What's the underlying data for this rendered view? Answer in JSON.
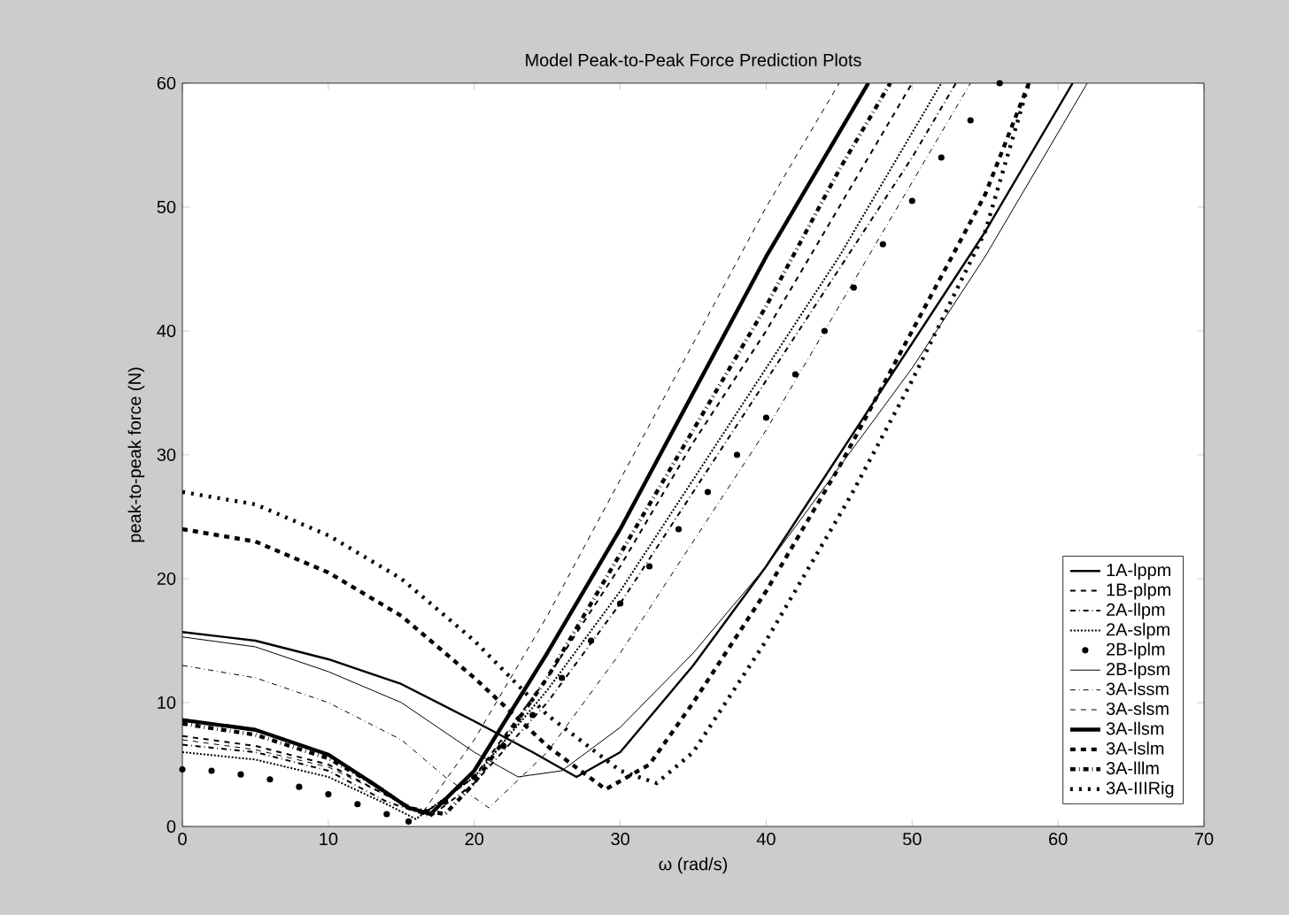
{
  "chart_data": {
    "type": "line",
    "title": "Model Peak-to-Peak Force Prediction Plots",
    "xlabel": "ω (rad/s)",
    "ylabel": "peak-to-peak force (N)",
    "xlim": [
      0,
      70
    ],
    "ylim": [
      0,
      60
    ],
    "xticks": [
      0,
      10,
      20,
      30,
      40,
      50,
      60,
      70
    ],
    "yticks": [
      0,
      10,
      20,
      30,
      40,
      50,
      60
    ],
    "grid": false,
    "legend": "bottom right",
    "series": [
      {
        "name": "1A-lppm",
        "color": "#000000",
        "line_style": "solid",
        "x": [
          0,
          5,
          10,
          15,
          20,
          24,
          27,
          30,
          35,
          40,
          45,
          50,
          55,
          61
        ],
        "values": [
          15.7,
          15,
          13.5,
          11.5,
          8.5,
          6,
          4,
          6,
          13,
          21,
          30,
          39,
          48,
          60
        ]
      },
      {
        "name": "1B-plpm",
        "color": "#000000",
        "line_style": "dashed",
        "x": [
          0,
          5,
          10,
          14,
          16.5,
          20,
          25,
          30,
          35,
          40,
          45,
          50
        ],
        "values": [
          7.3,
          6.5,
          5,
          2.5,
          1,
          4,
          12,
          21,
          31,
          40,
          50,
          60
        ]
      },
      {
        "name": "2A-llpm",
        "color": "#000000",
        "line_style": "dashdot",
        "x": [
          0,
          5,
          10,
          14,
          17,
          20,
          25,
          30,
          35,
          40,
          45,
          50,
          53
        ],
        "values": [
          6.6,
          6,
          4.5,
          2,
          0.8,
          3.5,
          10,
          18,
          27,
          36,
          45,
          54,
          60
        ]
      },
      {
        "name": "2A-slpm",
        "color": "#000000",
        "line_style": "dotted",
        "x": [
          0,
          5,
          10,
          14,
          16,
          20,
          25,
          30,
          35,
          40,
          45,
          50,
          52
        ],
        "values": [
          6.0,
          5.4,
          4,
          1.8,
          0.6,
          4,
          11,
          19,
          28,
          37,
          46,
          56,
          60
        ]
      },
      {
        "name": "2B-lplm",
        "type": "scatter",
        "color": "#000000",
        "marker": "circle",
        "x": [
          0,
          2,
          4,
          6,
          8,
          10,
          12,
          14,
          15.5,
          18,
          20,
          22,
          24,
          26,
          28,
          30,
          32,
          34,
          36,
          38,
          40,
          42,
          44,
          46,
          48,
          50,
          52,
          54,
          56
        ],
        "values": [
          4.6,
          4.5,
          4.2,
          3.8,
          3.2,
          2.6,
          1.8,
          1,
          0.4,
          2,
          4,
          6.5,
          9,
          12,
          15,
          18,
          21,
          24,
          27,
          30,
          33,
          36.5,
          40,
          43.5,
          47,
          50.5,
          54,
          57,
          60
        ]
      },
      {
        "name": "2B-lpsm",
        "color": "#000000",
        "line_style": "solid",
        "x": [
          0,
          5,
          10,
          15,
          20,
          23,
          26,
          30,
          35,
          40,
          45,
          50,
          55,
          62
        ],
        "values": [
          15.3,
          14.5,
          12.5,
          10,
          6,
          4,
          4.5,
          8,
          14,
          21,
          29,
          37,
          46,
          60
        ]
      },
      {
        "name": "3A-lssm",
        "color": "#000000",
        "line_style": "dashdot",
        "x": [
          0,
          5,
          10,
          15,
          18,
          21,
          25,
          30,
          35,
          40,
          45,
          50,
          54
        ],
        "values": [
          13.0,
          12,
          10,
          7,
          4,
          1.5,
          6,
          14,
          23,
          32,
          42,
          52,
          60
        ]
      },
      {
        "name": "3A-slsm",
        "color": "#000000",
        "line_style": "dashed",
        "x": [
          0,
          5,
          10,
          14,
          16.5,
          20,
          25,
          30,
          35,
          40,
          45
        ],
        "values": [
          7.0,
          6.2,
          4.8,
          2.5,
          1.2,
          7,
          17,
          28,
          39,
          50,
          60
        ]
      },
      {
        "name": "3A-llsm",
        "color": "#000000",
        "line_style": "solid",
        "x": [
          0,
          5,
          10,
          13,
          15.5,
          17,
          20,
          25,
          30,
          35,
          40,
          45,
          47
        ],
        "values": [
          8.6,
          7.8,
          5.8,
          3.5,
          1.5,
          1,
          4.5,
          14,
          24,
          35,
          46,
          56,
          60
        ]
      },
      {
        "name": "3A-lslm",
        "color": "#000000",
        "line_style": "dashed",
        "x": [
          0,
          5,
          10,
          15,
          20,
          25,
          29,
          32,
          35,
          40,
          45,
          50,
          55,
          58
        ],
        "values": [
          24.0,
          23,
          20.5,
          17,
          12,
          6.5,
          3,
          5,
          10,
          19,
          29,
          40,
          51,
          60
        ]
      },
      {
        "name": "3A-lllm",
        "color": "#000000",
        "line_style": "dashdot",
        "x": [
          0,
          5,
          10,
          13,
          15.5,
          18,
          20,
          25,
          30,
          35,
          40,
          45,
          48.5
        ],
        "values": [
          8.3,
          7.4,
          5.5,
          3.5,
          1.5,
          1,
          3.5,
          12,
          22,
          32,
          42,
          53,
          60
        ]
      },
      {
        "name": "3A-IIIRig",
        "color": "#000000",
        "line_style": "dotted",
        "x": [
          0,
          5,
          10,
          15,
          20,
          25,
          30,
          32.5,
          35,
          40,
          45.8,
          50,
          55,
          58
        ],
        "values": [
          27.0,
          26,
          23.5,
          20,
          15,
          9,
          4.5,
          3.5,
          6,
          15,
          26.7,
          36,
          48,
          60
        ]
      }
    ]
  }
}
